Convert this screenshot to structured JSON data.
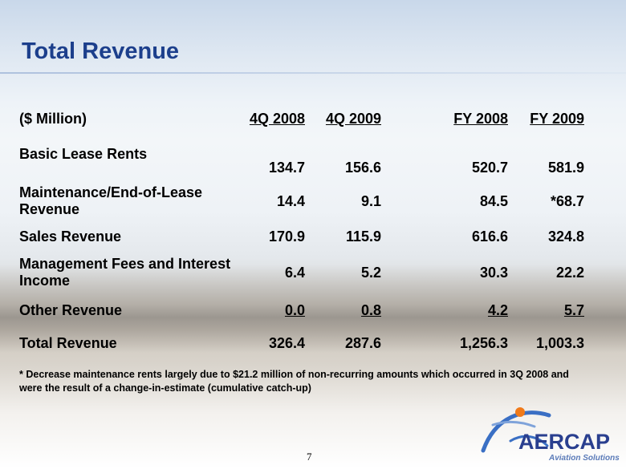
{
  "title": "Total Revenue",
  "table": {
    "header": {
      "label": "($ Million)",
      "q4_2008": "4Q 2008",
      "q4_2009": "4Q 2009",
      "fy_2008": "FY 2008",
      "fy_2009": "FY 2009"
    },
    "rows": [
      {
        "label": "Basic Lease Rents",
        "q4_2008": "134.7",
        "q4_2009": "156.6",
        "fy_2008": "520.7",
        "fy_2009": "581.9"
      },
      {
        "label": "Maintenance/End-of-Lease Revenue",
        "q4_2008": "14.4",
        "q4_2009": "9.1",
        "fy_2008": "84.5",
        "fy_2009": "*68.7"
      },
      {
        "label": "Sales Revenue",
        "q4_2008": "170.9",
        "q4_2009": "115.9",
        "fy_2008": "616.6",
        "fy_2009": "324.8"
      },
      {
        "label": "Management Fees and Interest Income",
        "q4_2008": "6.4",
        "q4_2009": "5.2",
        "fy_2008": "30.3",
        "fy_2009": "22.2"
      },
      {
        "label": "Other Revenue",
        "q4_2008": "0.0",
        "q4_2009": "0.8",
        "fy_2008": "4.2",
        "fy_2009": "5.7"
      },
      {
        "label": "Total Revenue",
        "q4_2008": "326.4",
        "q4_2009": "287.6",
        "fy_2008": "1,256.3",
        "fy_2009": "1,003.3"
      }
    ]
  },
  "footnote": "* Decrease maintenance rents largely due to $21.2 million of non-recurring amounts which occurred in 3Q 2008 and were the result of a change-in-estimate (cumulative catch-up)",
  "page_number": "7",
  "logo": {
    "name": "AERCAP",
    "tagline": "Aviation Solutions",
    "colors": {
      "primary": "#2a3f8f",
      "swoosh": "#3a6fc4",
      "accent": "#f07a1a"
    }
  }
}
